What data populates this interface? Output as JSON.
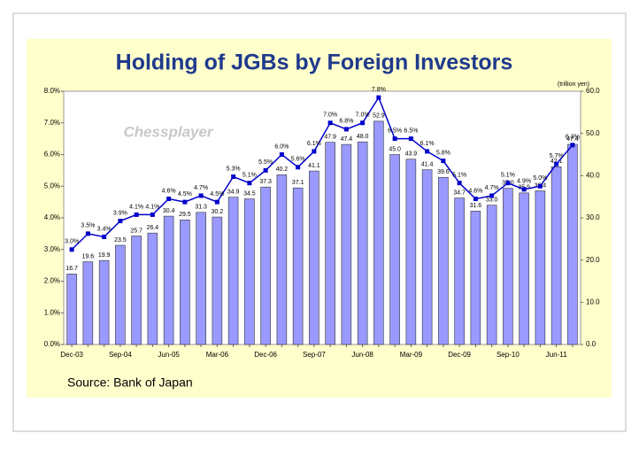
{
  "chart_data": {
    "type": "combo",
    "title": "Holding of JGBs by Foreign Investors",
    "y2_label": "(trillion yen)",
    "watermark": "Chessplayer",
    "source": "Source: Bank of Japan",
    "categories": [
      "Dec-03",
      null,
      null,
      "Sep-04",
      null,
      null,
      "Jun-05",
      null,
      null,
      "Mar-06",
      null,
      null,
      "Dec-06",
      null,
      null,
      "Sep-07",
      null,
      null,
      "Jun-08",
      null,
      null,
      "Mar-09",
      null,
      null,
      "Dec-09",
      null,
      null,
      "Sep-10",
      null,
      null,
      "Jun-11",
      null
    ],
    "series": [
      {
        "type": "bar",
        "axis": "y2",
        "color": "#9999ff",
        "values": [
          16.7,
          19.6,
          19.9,
          23.5,
          25.7,
          26.4,
          30.4,
          29.5,
          31.3,
          30.2,
          34.9,
          34.5,
          37.3,
          40.2,
          37.1,
          41.1,
          47.9,
          47.4,
          48.0,
          52.9,
          45.0,
          43.9,
          41.4,
          39.6,
          34.7,
          31.6,
          33.0,
          37.0,
          35.9,
          36.4,
          42.1,
          47.4
        ],
        "value_labels": [
          "16.7",
          "19.6",
          "19.9",
          "23.5",
          "25.7",
          "26.4",
          "30.4",
          "29.5",
          "31.3",
          "30.2",
          "34.9",
          "34.5",
          "37.3",
          "40.2",
          "37.1",
          "41.1",
          "47.9",
          "47.4",
          "48.0",
          "52.9",
          "45.0",
          "43.9",
          "41.4",
          "39.6",
          "34.7",
          "31.6",
          "33.0",
          "37.0",
          "35.9",
          "36.4",
          "42.1",
          "47.4"
        ]
      },
      {
        "type": "line",
        "color": "#0000cc",
        "values": [
          3.0,
          3.5,
          3.4,
          3.9,
          4.1,
          4.1,
          4.6,
          4.5,
          4.7,
          4.5,
          5.3,
          5.1,
          5.5,
          6.0,
          5.6,
          6.1,
          7.0,
          6.8,
          7.0,
          7.8,
          6.5,
          6.5,
          6.1,
          5.8,
          5.1,
          4.6,
          4.7,
          5.1,
          4.9,
          5.0,
          5.7,
          6.3
        ],
        "value_labels": [
          "3.0%",
          "3.5%",
          "3.4%",
          "3.9%",
          "4.1%",
          "4.1%",
          "4.6%",
          "4.5%",
          "4.7%",
          "4.5%",
          "5.3%",
          "5.1%",
          "5.5%",
          "6.0%",
          "5.6%",
          "6.1%",
          "7.0%",
          "6.8%",
          "7.0%",
          "7.8%",
          "6.5%",
          "6.5%",
          "6.1%",
          "5.8%",
          "5.1%",
          "4.6%",
          "4.7%",
          "5.1%",
          "4.9%",
          "5.0%",
          "5.7%",
          "6.3%"
        ]
      }
    ],
    "ylim": [
      0,
      8
    ],
    "yticks": [
      {
        "value": 0,
        "label": "0.0%"
      },
      {
        "value": 1,
        "label": "1.0%"
      },
      {
        "value": 2,
        "label": "2.0%"
      },
      {
        "value": 3,
        "label": "3.0%"
      },
      {
        "value": 4,
        "label": "4.0%"
      },
      {
        "value": 5,
        "label": "5.0%"
      },
      {
        "value": 6,
        "label": "6.0%"
      },
      {
        "value": 7,
        "label": "7.0%"
      },
      {
        "value": 8,
        "label": "8.0%"
      }
    ],
    "y2lim": [
      0,
      60
    ],
    "y2ticks": [
      {
        "value": 0,
        "label": "0.0"
      },
      {
        "value": 10,
        "label": "10.0"
      },
      {
        "value": 20,
        "label": "20.0"
      },
      {
        "value": 30,
        "label": "30.0"
      },
      {
        "value": 40,
        "label": "40.0"
      },
      {
        "value": 50,
        "label": "50.0"
      },
      {
        "value": 60,
        "label": "60.0"
      }
    ]
  }
}
